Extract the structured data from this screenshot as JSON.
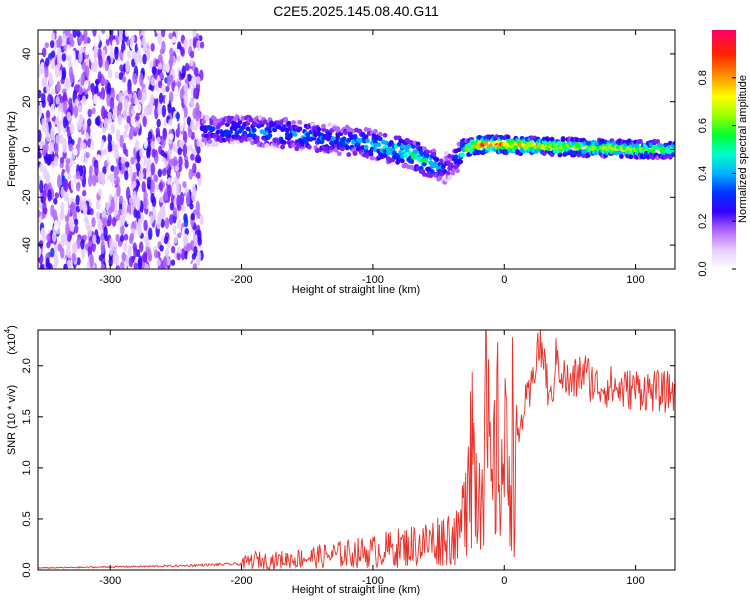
{
  "title": "C2E5.2025.145.08.40.G11",
  "colors": {
    "snr_line": "#e8312a",
    "frame": "#000000",
    "colormap": [
      "#ffffff",
      "#e6ccff",
      "#b266ff",
      "#7a1fff",
      "#3300ff",
      "#0033ff",
      "#00b3ff",
      "#00ffcc",
      "#00ff33",
      "#99ff00",
      "#ffff00",
      "#ff9900",
      "#ff2200",
      "#ff0066"
    ]
  },
  "chart_data": [
    {
      "type": "heatmap",
      "xlabel": "Height of straight line (km)",
      "ylabel": "Frequency (Hz)",
      "xlim": [
        -355,
        130
      ],
      "ylim": [
        -50,
        50
      ],
      "xticks": [
        "-300",
        "-200",
        "-100",
        "0",
        "100"
      ],
      "xtick_values": [
        -300,
        -200,
        -100,
        0,
        100
      ],
      "yticks": [
        "-40",
        "-20",
        "0",
        "20",
        "40"
      ],
      "ytick_values": [
        -40,
        -20,
        0,
        20,
        40
      ],
      "colorbar": {
        "label": "Normalized spectral amplitude",
        "range": [
          0,
          1
        ],
        "ticks": [
          "0.0",
          "0.2",
          "0.4",
          "0.6",
          "0.8"
        ],
        "tick_values": [
          0.0,
          0.2,
          0.4,
          0.6,
          0.8
        ]
      },
      "ridge": {
        "x": [
          -230,
          -200,
          -170,
          -140,
          -110,
          -90,
          -70,
          -55,
          -45,
          -40,
          -30,
          -20,
          0,
          50,
          100,
          130
        ],
        "freq": [
          8,
          8,
          7,
          5,
          3,
          1,
          -2,
          -6,
          -8,
          -6,
          0,
          2,
          2,
          1,
          0,
          0
        ],
        "amplitude": [
          0.35,
          0.4,
          0.45,
          0.4,
          0.45,
          0.55,
          0.6,
          0.55,
          0.35,
          0.3,
          0.6,
          0.9,
          0.9,
          0.7,
          0.75,
          0.6
        ]
      },
      "noise_region_x": [
        -355,
        -230
      ]
    },
    {
      "type": "line",
      "xlabel": "Height of straight line (km)",
      "ylabel": "SNR (10 * v/v)",
      "ylabel_multiplier": "(x10",
      "ylabel_multiplier_exp": "4",
      "ylabel_multiplier_close": ")",
      "xlim": [
        -355,
        130
      ],
      "ylim": [
        0,
        23500
      ],
      "xticks": [
        "-300",
        "-200",
        "-100",
        "0",
        "100"
      ],
      "xtick_values": [
        -300,
        -200,
        -100,
        0,
        100
      ],
      "yticks": [
        "0.0",
        "0.5",
        "1.0",
        "1.5",
        "2.0"
      ],
      "ytick_values": [
        0,
        5000,
        10000,
        15000,
        20000
      ],
      "series": [
        {
          "x": [
            -355,
            -300,
            -250,
            -200,
            -190,
            -180,
            -150,
            -120,
            -100,
            -80,
            -60,
            -50,
            -40,
            -35,
            -30,
            -28,
            -25,
            -22,
            -20,
            -15,
            -12,
            -10,
            -5,
            0,
            5,
            10,
            15,
            20,
            25,
            30,
            35,
            40,
            45,
            50,
            60,
            70,
            80,
            90,
            100,
            110,
            120,
            130
          ],
          "y": [
            200,
            300,
            400,
            600,
            1000,
            900,
            1200,
            1600,
            1800,
            2200,
            2600,
            3000,
            3400,
            3000,
            6000,
            14000,
            15000,
            9000,
            7000,
            17000,
            11000,
            7000,
            12000,
            10000,
            13000,
            12000,
            16000,
            17000,
            22000,
            21000,
            16000,
            21000,
            19000,
            18000,
            19500,
            18000,
            18000,
            17600,
            17800,
            17600,
            17400,
            17500
          ]
        }
      ]
    }
  ]
}
